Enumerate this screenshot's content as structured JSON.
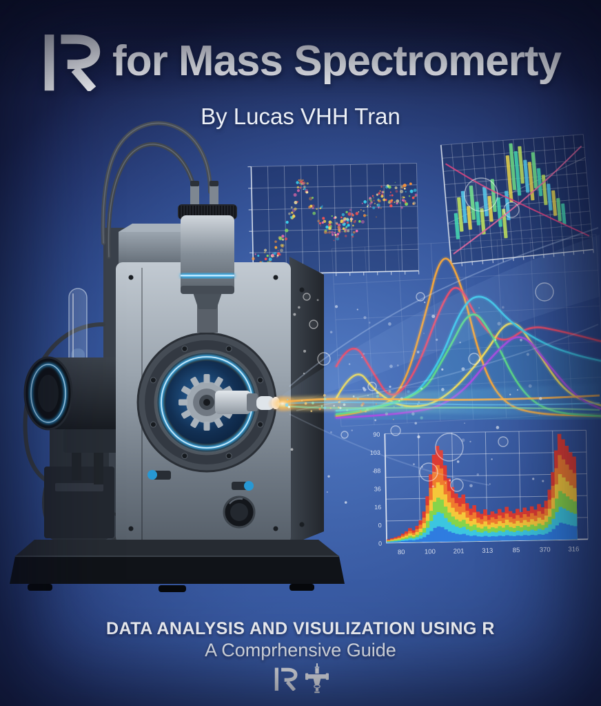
{
  "cover": {
    "title": {
      "r_glyph": "R",
      "rest": "for Mass Spectromerty"
    },
    "byline": "By Lucas VHH Tran",
    "footer": {
      "line1": "DATA ANALYSIS AND VISULIZATION USING R",
      "line2": "A Comprhensive Guide",
      "logo_r": "R",
      "logo_icon_name": "mass-spectrometer-icon"
    },
    "colors": {
      "background_center": "#4a6db8",
      "background_edge": "#151b3c",
      "accent_glow": "#3fb6ff",
      "text": "#ffffff"
    }
  },
  "chart_data": [
    {
      "id": "scatter-panel",
      "type": "scatter",
      "title": "",
      "description": "decorative rainbow scatter with rising-dip-rising trend",
      "x_range": [
        0,
        12
      ],
      "y_range": [
        0,
        6
      ],
      "grid": {
        "cols": 10,
        "rows": 5,
        "on": true
      },
      "trend": {
        "x": [
          0,
          0.6,
          1.2,
          1.8,
          2.4,
          3.0,
          3.4,
          3.8,
          4.2,
          4.8,
          5.4,
          6.0,
          6.6,
          7.2,
          7.8,
          8.4,
          9.0,
          9.6,
          10.2,
          10.8,
          11.4,
          12.0
        ],
        "y": [
          0.35,
          0.5,
          0.8,
          1.3,
          2.1,
          3.3,
          4.6,
          4.9,
          4.1,
          3.2,
          2.7,
          2.35,
          2.5,
          2.7,
          3.1,
          3.5,
          3.9,
          4.15,
          4.3,
          4.2,
          4.45,
          4.35
        ]
      },
      "point_count": 260,
      "jitter": 0.55,
      "palette": [
        "#ff5252",
        "#ff9538",
        "#ffd94d",
        "#8ce65c",
        "#3ad6f0",
        "#ff6fae",
        "#ffe9a0"
      ],
      "axis_ticks_illegible": true
    },
    {
      "id": "candle-panel",
      "type": "bar",
      "title": "",
      "description": "decorative candlestick-style bars with two crossing trend lines",
      "grid": {
        "cols": 14,
        "rows": 9,
        "on": true
      },
      "bars": [
        [
          0.06,
          0.2,
          0.42
        ],
        [
          0.09,
          0.26,
          0.55
        ],
        [
          0.12,
          0.33,
          0.6
        ],
        [
          0.15,
          0.27,
          0.47
        ],
        [
          0.18,
          0.35,
          0.64
        ],
        [
          0.21,
          0.3,
          0.5
        ],
        [
          0.24,
          0.22,
          0.44
        ],
        [
          0.27,
          0.37,
          0.62
        ],
        [
          0.3,
          0.32,
          0.54
        ],
        [
          0.33,
          0.4,
          0.68
        ],
        [
          0.36,
          0.27,
          0.52
        ],
        [
          0.39,
          0.17,
          0.42
        ],
        [
          0.42,
          0.32,
          0.57
        ],
        [
          0.45,
          0.47,
          0.87
        ],
        [
          0.48,
          0.57,
          0.97
        ],
        [
          0.51,
          0.52,
          0.9
        ],
        [
          0.54,
          0.62,
          0.94
        ],
        [
          0.57,
          0.54,
          0.82
        ],
        [
          0.6,
          0.47,
          0.8
        ],
        [
          0.63,
          0.57,
          0.88
        ],
        [
          0.66,
          0.5,
          0.74
        ],
        [
          0.69,
          0.42,
          0.68
        ],
        [
          0.72,
          0.37,
          0.6
        ],
        [
          0.75,
          0.32,
          0.54
        ],
        [
          0.78,
          0.27,
          0.47
        ],
        [
          0.81,
          0.24,
          0.42
        ]
      ],
      "bar_colors": [
        "#45d8b2",
        "#c2e45e",
        "#52c9ea",
        "#e9d64d",
        "#6fe089"
      ],
      "lines": [
        {
          "color": "#dd4580",
          "points": [
            [
              0.02,
              0.84
            ],
            [
              0.25,
              0.63
            ],
            [
              0.5,
              0.46
            ],
            [
              0.75,
              0.28
            ],
            [
              0.98,
              0.12
            ]
          ]
        },
        {
          "color": "#e4679c",
          "points": [
            [
              0.02,
              0.08
            ],
            [
              0.25,
              0.25
            ],
            [
              0.5,
              0.45
            ],
            [
              0.75,
              0.67
            ],
            [
              0.98,
              0.9
            ]
          ]
        }
      ],
      "axis_ticks_illegible": true
    },
    {
      "id": "waves-panel",
      "type": "line",
      "title": "",
      "description": "smooth chromatographic peak curves over faint grid",
      "grid": {
        "cols": 8,
        "rows": 5,
        "on": true
      },
      "series": [
        {
          "name": "orange",
          "color": "#f6a73b",
          "points": [
            [
              0,
              0.02
            ],
            [
              0.15,
              0.05
            ],
            [
              0.25,
              0.16
            ],
            [
              0.33,
              0.55
            ],
            [
              0.4,
              0.97
            ],
            [
              0.47,
              0.78
            ],
            [
              0.55,
              0.3
            ],
            [
              0.63,
              0.09
            ],
            [
              0.75,
              0.03
            ],
            [
              1,
              0.02
            ]
          ]
        },
        {
          "name": "crimson",
          "color": "#e8506e",
          "points": [
            [
              0,
              0.3
            ],
            [
              0.06,
              0.46
            ],
            [
              0.14,
              0.26
            ],
            [
              0.21,
              0.1
            ],
            [
              0.3,
              0.26
            ],
            [
              0.4,
              0.66
            ],
            [
              0.46,
              0.78
            ],
            [
              0.54,
              0.54
            ],
            [
              0.63,
              0.42
            ],
            [
              0.73,
              0.53
            ],
            [
              0.84,
              0.5
            ],
            [
              1,
              0.44
            ]
          ]
        },
        {
          "name": "yellow",
          "color": "#ecd95c",
          "points": [
            [
              0,
              0.12
            ],
            [
              0.07,
              0.31
            ],
            [
              0.15,
              0.15
            ],
            [
              0.26,
              0.06
            ],
            [
              0.4,
              0.1
            ],
            [
              0.55,
              0.34
            ],
            [
              0.66,
              0.6
            ],
            [
              0.76,
              0.38
            ],
            [
              0.87,
              0.14
            ],
            [
              1,
              0.08
            ]
          ]
        },
        {
          "name": "cyan",
          "color": "#3fc9ea",
          "points": [
            [
              0,
              0.05
            ],
            [
              0.25,
              0.07
            ],
            [
              0.38,
              0.28
            ],
            [
              0.48,
              0.66
            ],
            [
              0.56,
              0.71
            ],
            [
              0.66,
              0.54
            ],
            [
              0.79,
              0.42
            ],
            [
              0.91,
              0.36
            ],
            [
              1,
              0.33
            ]
          ]
        },
        {
          "name": "green",
          "color": "#5fd98a",
          "points": [
            [
              0,
              0.03
            ],
            [
              0.3,
              0.08
            ],
            [
              0.42,
              0.38
            ],
            [
              0.51,
              0.64
            ],
            [
              0.59,
              0.48
            ],
            [
              0.69,
              0.17
            ],
            [
              0.8,
              0.04
            ],
            [
              1,
              0.02
            ]
          ]
        },
        {
          "name": "purple",
          "color": "#a94fe0",
          "points": [
            [
              0,
              0.01
            ],
            [
              0.3,
              0.03
            ],
            [
              0.46,
              0.12
            ],
            [
              0.6,
              0.38
            ],
            [
              0.7,
              0.5
            ],
            [
              0.8,
              0.31
            ],
            [
              0.91,
              0.12
            ],
            [
              1,
              0.06
            ]
          ]
        }
      ],
      "fill_series": "cyan"
    },
    {
      "id": "spectrum-panel",
      "type": "area",
      "title": "",
      "description": "rainbow-banded intensity spectrum with twin peaks",
      "grid": {
        "cols": 6,
        "rows": 5,
        "on": true
      },
      "y_tick_labels": [
        "90",
        "103",
        "88",
        "36",
        "16",
        "0",
        "0"
      ],
      "x_tick_labels": [
        "80",
        "100",
        "201",
        "313",
        "85",
        "370",
        "316"
      ],
      "envelope": [
        0.03,
        0.04,
        0.05,
        0.06,
        0.08,
        0.1,
        0.13,
        0.11,
        0.15,
        0.2,
        0.28,
        0.42,
        0.62,
        0.8,
        0.88,
        0.84,
        0.7,
        0.58,
        0.5,
        0.44,
        0.4,
        0.43,
        0.35,
        0.3,
        0.33,
        0.27,
        0.25,
        0.29,
        0.24,
        0.27,
        0.25,
        0.29,
        0.26,
        0.31,
        0.27,
        0.25,
        0.29,
        0.26,
        0.3,
        0.27,
        0.31,
        0.28,
        0.33,
        0.3,
        0.36,
        0.46,
        0.62,
        0.82,
        0.97,
        0.92,
        0.86,
        0.8,
        0.76,
        0,
        0,
        0
      ],
      "bands": [
        {
          "color": "#dc3b33",
          "scale": 1.0
        },
        {
          "color": "#f07a2e",
          "scale": 0.8
        },
        {
          "color": "#f5c83a",
          "scale": 0.62
        },
        {
          "color": "#86d44a",
          "scale": 0.46
        },
        {
          "color": "#3cc6e0",
          "scale": 0.31
        },
        {
          "color": "#2f7ce0",
          "scale": 0.16
        }
      ]
    }
  ]
}
